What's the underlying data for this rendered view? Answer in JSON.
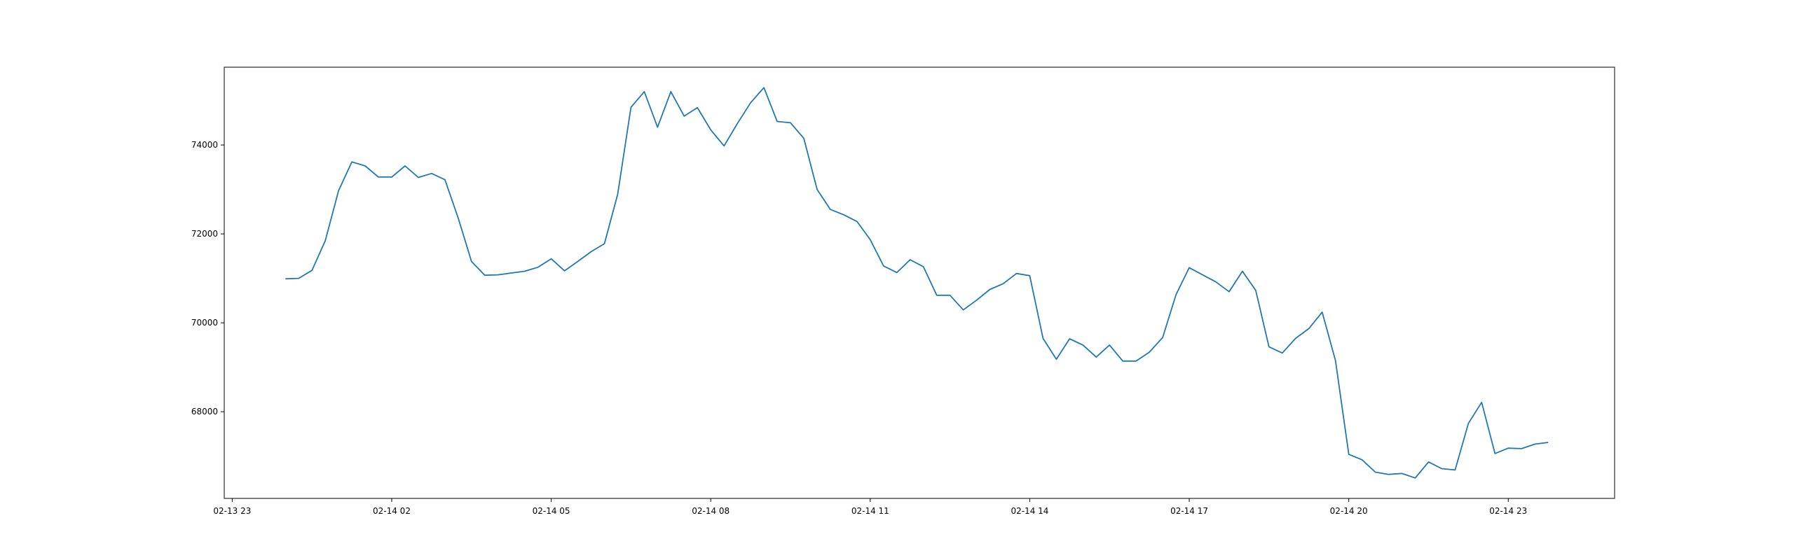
{
  "chart_data": {
    "type": "line",
    "title": "",
    "xlabel": "",
    "ylabel": "",
    "x_tick_labels": [
      "02-13 23",
      "02-14 02",
      "02-14 05",
      "02-14 08",
      "02-14 11",
      "02-14 14",
      "02-14 17",
      "02-14 20",
      "02-14 23"
    ],
    "x_tick_hours": [
      -1,
      2,
      5,
      8,
      11,
      14,
      17,
      20,
      23
    ],
    "y_tick_labels": [
      "68000",
      "70000",
      "72000",
      "74000"
    ],
    "y_tick_values": [
      68000,
      70000,
      72000,
      74000
    ],
    "xlim_hours": [
      -1.15,
      25.0
    ],
    "ylim": [
      66050,
      75750
    ],
    "grid": false,
    "series": [
      {
        "color": "#1f77b4",
        "x_hours": [
          0.0,
          0.25,
          0.5,
          0.75,
          1.0,
          1.25,
          1.5,
          1.75,
          2.0,
          2.25,
          2.5,
          2.75,
          3.0,
          3.25,
          3.5,
          3.75,
          4.0,
          4.25,
          4.5,
          4.75,
          5.0,
          5.25,
          5.5,
          5.75,
          6.0,
          6.25,
          6.5,
          6.75,
          7.0,
          7.25,
          7.5,
          7.75,
          8.0,
          8.25,
          8.5,
          8.75,
          9.0,
          9.25,
          9.5,
          9.75,
          10.0,
          10.25,
          10.5,
          10.75,
          11.0,
          11.25,
          11.5,
          11.75,
          12.0,
          12.25,
          12.5,
          12.75,
          13.0,
          13.25,
          13.5,
          13.75,
          14.0,
          14.25,
          14.5,
          14.75,
          15.0,
          15.25,
          15.5,
          15.75,
          16.0,
          16.25,
          16.5,
          16.75,
          17.0,
          17.25,
          17.5,
          17.75,
          18.0,
          18.25,
          18.5,
          18.75,
          19.0,
          19.25,
          19.5,
          19.75,
          20.0,
          20.25,
          20.5,
          20.75,
          21.0,
          21.25,
          21.5,
          21.75,
          22.0,
          22.25,
          22.5,
          22.75,
          23.0,
          23.25,
          23.5,
          23.75
        ],
        "values": [
          70990,
          71000,
          71180,
          71850,
          72970,
          73620,
          73530,
          73280,
          73280,
          73530,
          73270,
          73360,
          73220,
          72360,
          71380,
          71070,
          71080,
          71120,
          71160,
          71250,
          71440,
          71170,
          71380,
          71600,
          71780,
          72890,
          74850,
          75200,
          74400,
          75200,
          74650,
          74840,
          74340,
          73980,
          74480,
          74950,
          75290,
          74530,
          74500,
          74150,
          73000,
          72550,
          72430,
          72280,
          71870,
          71280,
          71130,
          71420,
          71260,
          70620,
          70620,
          70290,
          70510,
          70750,
          70880,
          71110,
          71060,
          69650,
          69180,
          69640,
          69500,
          69230,
          69500,
          69140,
          69140,
          69340,
          69670,
          70630,
          71240,
          71080,
          70920,
          70700,
          71160,
          70730,
          69460,
          69320,
          69650,
          69870,
          70240,
          69150,
          67040,
          66920,
          66640,
          66590,
          66610,
          66510,
          66870,
          66720,
          66690,
          67740,
          68210,
          67060,
          67180,
          67170,
          67270,
          67310
        ]
      }
    ]
  }
}
